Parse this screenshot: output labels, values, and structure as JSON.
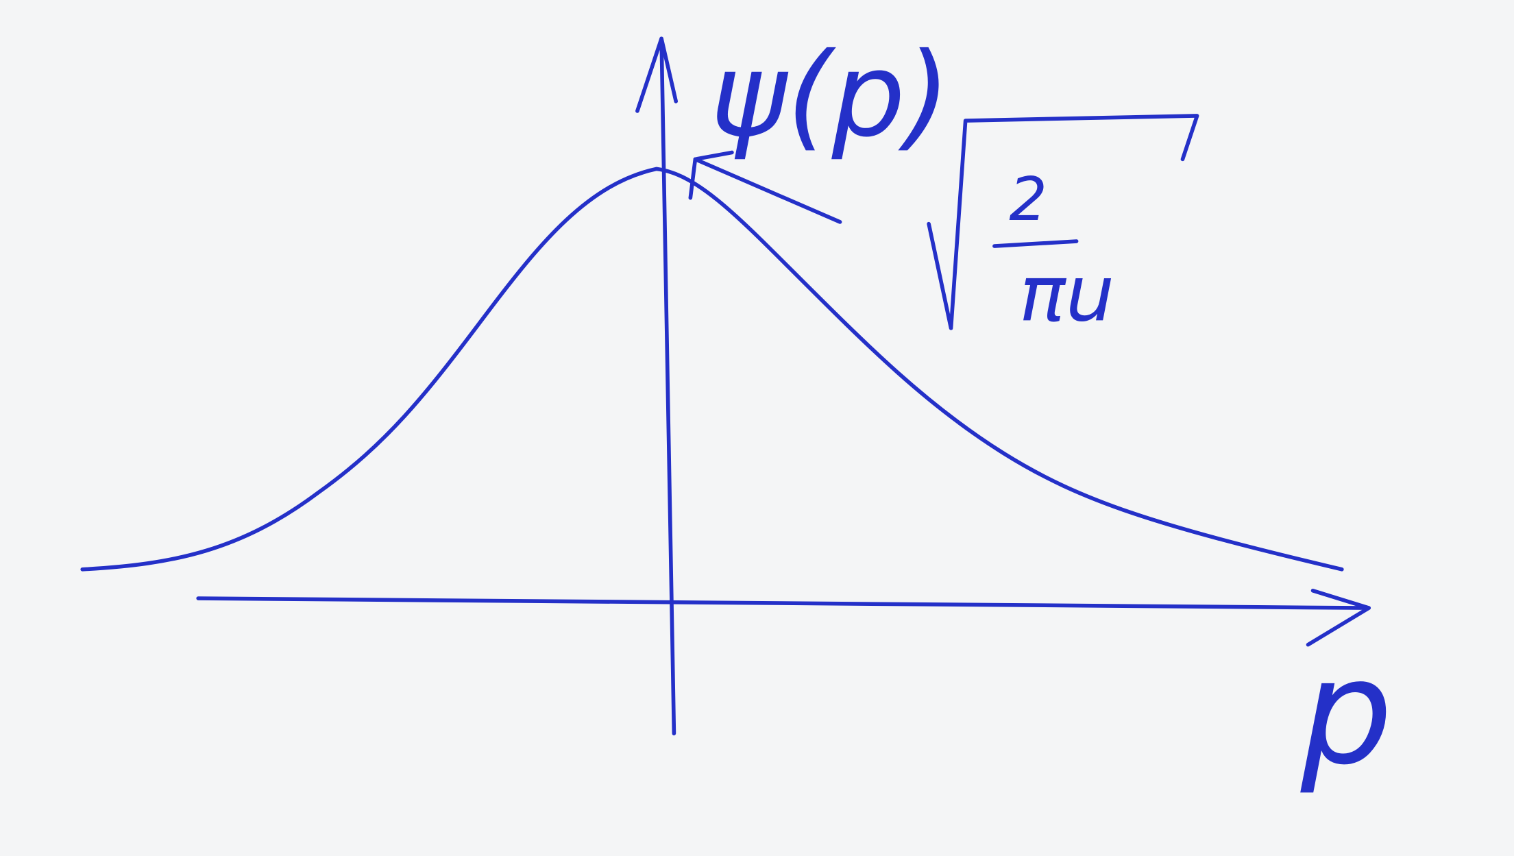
{
  "labels": {
    "y_axis": "ψ(p)",
    "x_axis": "p",
    "peak_numerator": "2",
    "peak_denominator": "πu"
  }
}
